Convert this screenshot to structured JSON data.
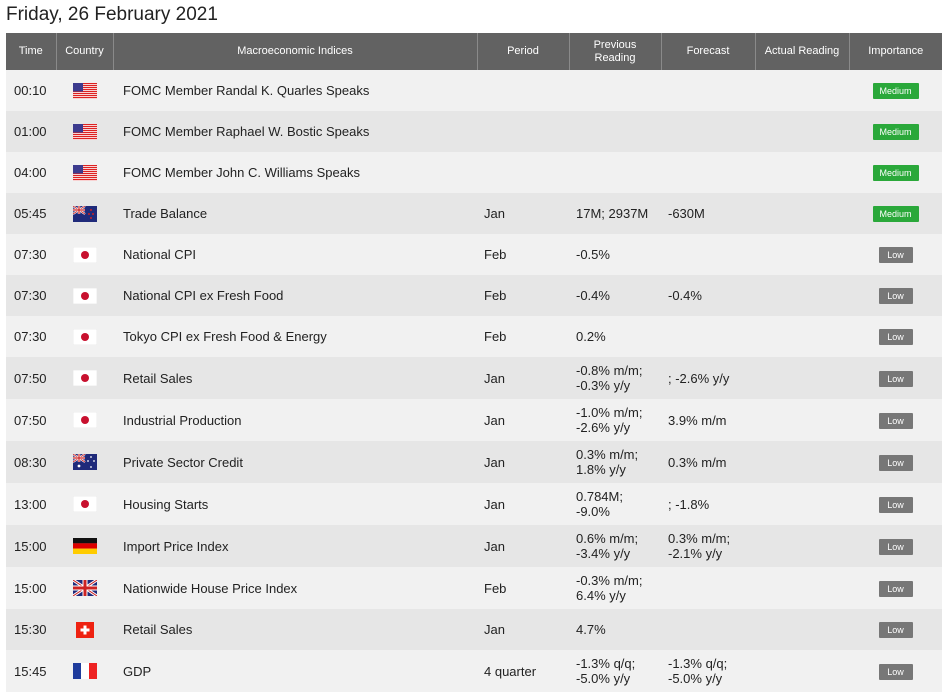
{
  "date_title": "Friday, 26 February 2021",
  "columns": {
    "time": "Time",
    "country": "Country",
    "indices": "Macroeconomic Indices",
    "period": "Period",
    "previous": "Previous Reading",
    "forecast": "Forecast",
    "actual": "Actual Reading",
    "importance": "Importance"
  },
  "colors": {
    "header_bg": "#626262",
    "medium": "#2aa83a",
    "low": "#777777",
    "row_odd": "#f1f1f1",
    "row_even": "#e6e6e6"
  },
  "rows": [
    {
      "time": "00:10",
      "flag": "us",
      "indicator": "FOMC Member Randal K. Quarles Speaks",
      "period": "",
      "previous": "",
      "forecast": "",
      "actual": "",
      "importance": "Medium"
    },
    {
      "time": "01:00",
      "flag": "us",
      "indicator": "FOMC Member Raphael W. Bostic Speaks",
      "period": "",
      "previous": "",
      "forecast": "",
      "actual": "",
      "importance": "Medium"
    },
    {
      "time": "04:00",
      "flag": "us",
      "indicator": "FOMC Member John C. Williams Speaks",
      "period": "",
      "previous": "",
      "forecast": "",
      "actual": "",
      "importance": "Medium"
    },
    {
      "time": "05:45",
      "flag": "nz",
      "indicator": "Trade Balance",
      "period": "Jan",
      "previous": "17M; 2937M",
      "forecast": "-630M",
      "actual": "",
      "importance": "Medium"
    },
    {
      "time": "07:30",
      "flag": "jp",
      "indicator": "National CPI",
      "period": "Feb",
      "previous": "-0.5%",
      "forecast": "",
      "actual": "",
      "importance": "Low"
    },
    {
      "time": "07:30",
      "flag": "jp",
      "indicator": "National CPI ex Fresh Food",
      "period": "Feb",
      "previous": "-0.4%",
      "forecast": "-0.4%",
      "actual": "",
      "importance": "Low"
    },
    {
      "time": "07:30",
      "flag": "jp",
      "indicator": "Tokyo CPI ex Fresh Food & Energy",
      "period": "Feb",
      "previous": "0.2%",
      "forecast": "",
      "actual": "",
      "importance": "Low"
    },
    {
      "time": "07:50",
      "flag": "jp",
      "indicator": "Retail Sales",
      "period": "Jan",
      "previous": "-0.8% m/m;\n-0.3% y/y",
      "forecast": "; -2.6% y/y",
      "actual": "",
      "importance": "Low"
    },
    {
      "time": "07:50",
      "flag": "jp",
      "indicator": "Industrial Production",
      "period": "Jan",
      "previous": "-1.0% m/m;\n-2.6% y/y",
      "forecast": "3.9% m/m",
      "actual": "",
      "importance": "Low"
    },
    {
      "time": "08:30",
      "flag": "au",
      "indicator": "Private Sector Credit",
      "period": "Jan",
      "previous": "0.3% m/m;\n1.8% y/y",
      "forecast": "0.3% m/m",
      "actual": "",
      "importance": "Low"
    },
    {
      "time": "13:00",
      "flag": "jp",
      "indicator": "Housing Starts",
      "period": "Jan",
      "previous": "0.784M;\n-9.0%",
      "forecast": "; -1.8%",
      "actual": "",
      "importance": "Low"
    },
    {
      "time": "15:00",
      "flag": "de",
      "indicator": "Import Price Index",
      "period": "Jan",
      "previous": "0.6% m/m;\n-3.4% y/y",
      "forecast": "0.3% m/m;\n-2.1% y/y",
      "actual": "",
      "importance": "Low"
    },
    {
      "time": "15:00",
      "flag": "gb",
      "indicator": "Nationwide House Price Index",
      "period": "Feb",
      "previous": "-0.3% m/m;\n6.4% y/y",
      "forecast": "",
      "actual": "",
      "importance": "Low"
    },
    {
      "time": "15:30",
      "flag": "ch",
      "indicator": "Retail Sales",
      "period": "Jan",
      "previous": "4.7%",
      "forecast": "",
      "actual": "",
      "importance": "Low"
    },
    {
      "time": "15:45",
      "flag": "fr",
      "indicator": "GDP",
      "period": "4 quarter",
      "previous": "-1.3% q/q;\n-5.0% y/y",
      "forecast": "-1.3% q/q;\n-5.0% y/y",
      "actual": "",
      "importance": "Low"
    }
  ]
}
